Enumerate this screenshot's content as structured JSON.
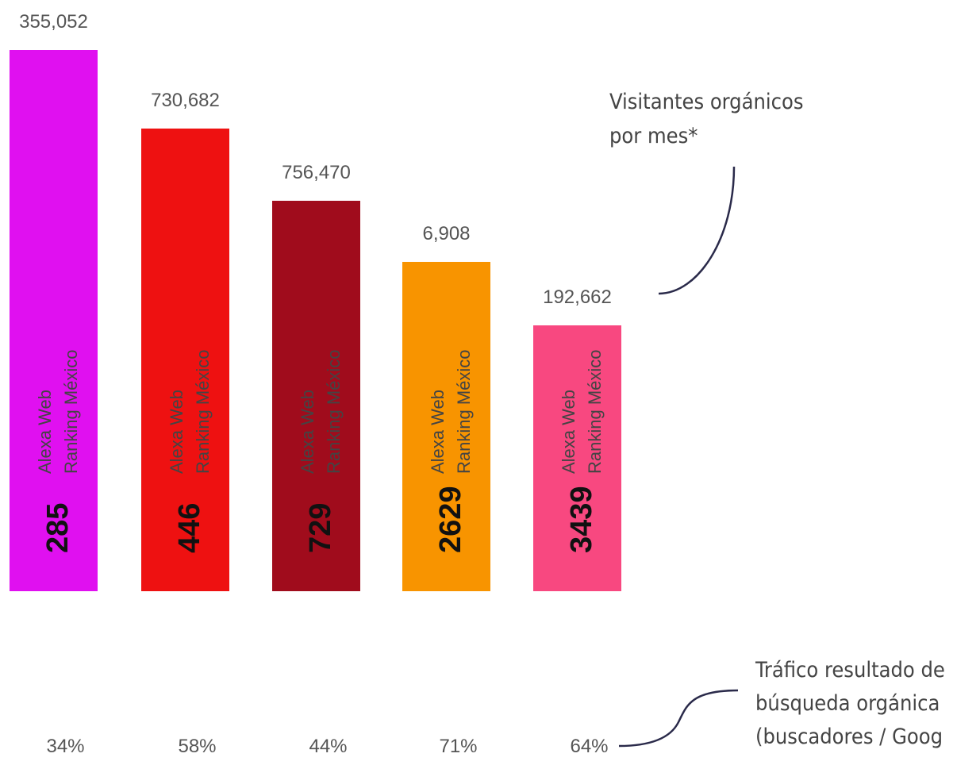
{
  "items": [
    {
      "visitors": "355,052",
      "rank_label_1": "Alexa Web",
      "rank_label_2": "Ranking México",
      "rank": "285",
      "organic": "34%",
      "color": "#e010f0"
    },
    {
      "visitors": "730,682",
      "rank_label_1": "Alexa Web",
      "rank_label_2": "Ranking México",
      "rank": "446",
      "organic": "58%",
      "color": "#ee1111"
    },
    {
      "visitors": "756,470",
      "rank_label_1": "Alexa Web",
      "rank_label_2": "Ranking México",
      "rank": "729",
      "organic": "44%",
      "color": "#a00c1c"
    },
    {
      "visitors": "6,908",
      "rank_label_1": "Alexa Web",
      "rank_label_2": "Ranking México",
      "rank": "2629",
      "organic": "71%",
      "color": "#f89400"
    },
    {
      "visitors": "192,662",
      "rank_label_1": "Alexa Web",
      "rank_label_2": "Ranking México",
      "rank": "3439",
      "organic": "64%",
      "color": "#f84880"
    }
  ],
  "annotations": {
    "visitors_note": [
      "Visitantes orgánicos",
      "por mes*"
    ],
    "organic_note": [
      "Tráfico resultado de",
      "búsqueda orgánica",
      "(buscadores / Goog"
    ]
  }
}
